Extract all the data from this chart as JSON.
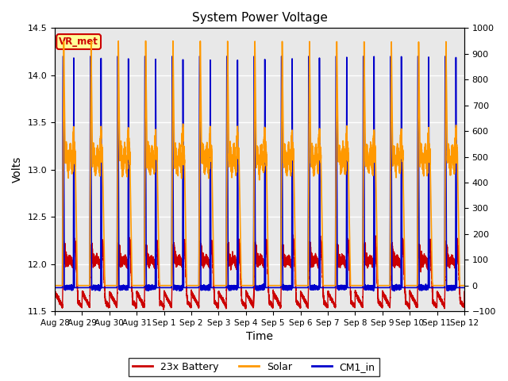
{
  "title": "System Power Voltage",
  "xlabel": "Time",
  "ylabel": "Volts",
  "ylim_left": [
    11.5,
    14.5
  ],
  "ylim_right": [
    -100,
    1000
  ],
  "yticks_left": [
    11.5,
    12.0,
    12.5,
    13.0,
    13.5,
    14.0,
    14.5
  ],
  "yticks_right": [
    -100,
    0,
    100,
    200,
    300,
    400,
    500,
    600,
    700,
    800,
    900,
    1000
  ],
  "xtick_labels": [
    "Aug 28",
    "Aug 29",
    "Aug 30",
    "Aug 31",
    "Sep 1",
    "Sep 2",
    "Sep 3",
    "Sep 4",
    "Sep 5",
    "Sep 6",
    "Sep 7",
    "Sep 8",
    "Sep 9",
    "Sep 10",
    "Sep 11",
    "Sep 12"
  ],
  "battery_color": "#cc0000",
  "solar_color": "#ff9900",
  "cm1_color": "#0000cc",
  "bg_color": "#e8e8e8",
  "annotation_text": "VR_met",
  "annotation_color": "#cc0000",
  "annotation_bg": "#ffff99",
  "legend_labels": [
    "23x Battery",
    "Solar",
    "CM1_in"
  ],
  "legend_colors": [
    "#cc0000",
    "#ff9900",
    "#0000cc"
  ],
  "figsize": [
    6.4,
    4.8
  ],
  "dpi": 100
}
